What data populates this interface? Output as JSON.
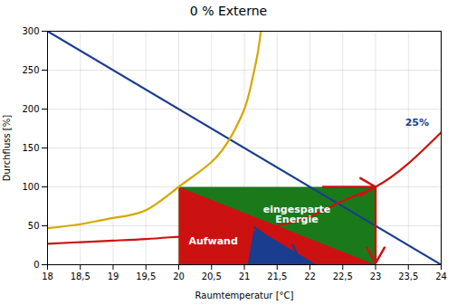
{
  "chart_data": {
    "type": "line",
    "title": "0 % Externe",
    "xlabel": "Raumtemperatur [°C]",
    "ylabel": "Durchfluss [%]",
    "xlim": [
      18,
      24
    ],
    "ylim": [
      0,
      300
    ],
    "xticks": [
      18,
      {
        "value": 18.5,
        "label": "18,5"
      },
      19,
      {
        "value": 19.5,
        "label": "19,5"
      },
      20,
      {
        "value": 20.5,
        "label": "20,5"
      },
      21,
      {
        "value": 21.5,
        "label": "21,5"
      },
      22,
      {
        "value": 22.5,
        "label": "22,5"
      },
      23,
      {
        "value": 23.5,
        "label": "23,5"
      },
      24
    ],
    "yticks": [
      0,
      50,
      100,
      150,
      200,
      250,
      300
    ],
    "grid": true,
    "series": [
      {
        "type": "polygon",
        "color": "#1a7a1a",
        "x": [
          20,
          20,
          23,
          23
        ],
        "values": [
          0,
          100,
          100,
          0
        ]
      },
      {
        "type": "polygon",
        "color": "#cc1111",
        "x": [
          20,
          20,
          23
        ],
        "values": [
          100,
          0,
          0
        ]
      },
      {
        "type": "polygon",
        "color": "#1a3d8f",
        "x": [
          21.15,
          22.1,
          21.05
        ],
        "values": [
          48,
          0,
          0
        ]
      },
      {
        "type": "line",
        "color": "#1a3d8f",
        "x": [
          18,
          24
        ],
        "values": [
          300,
          0
        ]
      },
      {
        "type": "line",
        "color": "#d4a800",
        "x": [
          18,
          18.5,
          19,
          19.5,
          20,
          20.5,
          20.8,
          21.0,
          21.1,
          21.2,
          21.25
        ],
        "values": [
          47,
          52,
          60,
          70,
          100,
          132,
          165,
          200,
          230,
          270,
          300
        ]
      },
      {
        "type": "line",
        "color": "#cc1111",
        "x": [
          18,
          18.5,
          19,
          19.5,
          20,
          20.5,
          21,
          21.5,
          22,
          22.5,
          23,
          23.5,
          24
        ],
        "values": [
          27,
          29,
          31,
          33,
          36,
          39,
          43,
          50,
          62,
          82,
          100,
          130,
          170
        ]
      },
      {
        "type": "arrow",
        "color": "#cc1111",
        "x": [
          22.2,
          23.0
        ],
        "values": [
          100,
          100
        ]
      },
      {
        "type": "arrow",
        "color": "#cc1111",
        "x": [
          23.0,
          23.0
        ],
        "values": [
          100,
          2
        ]
      },
      {
        "type": "arrow",
        "color": "#1a3d8f",
        "x": [
          21.15,
          21.85
        ],
        "values": [
          48,
          4
        ]
      }
    ],
    "annotations": [
      {
        "text": "Aufwand",
        "x": 20.15,
        "y": 30,
        "color": "white"
      },
      {
        "text": "eingesparte\nEnergie",
        "x": 21.8,
        "y": 65,
        "color": "white"
      },
      {
        "text": "25%",
        "x": 23.45,
        "y": 178,
        "color": "#1a3d8f"
      }
    ]
  }
}
